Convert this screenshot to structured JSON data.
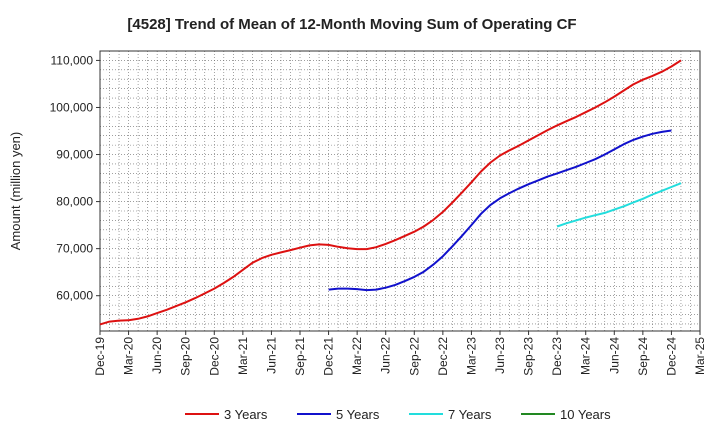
{
  "chart_data": {
    "type": "line",
    "title": "[4528]  Trend of Mean of 12-Month Moving Sum of Operating CF",
    "xlabel": "",
    "ylabel": "Amount (million yen)",
    "ylim": [
      52500,
      112000
    ],
    "yticks": [
      60000,
      70000,
      80000,
      90000,
      100000,
      110000
    ],
    "ytick_labels": [
      "60,000",
      "70,000",
      "80,000",
      "90,000",
      "100,000",
      "110,000"
    ],
    "xlim_months": [
      0,
      63
    ],
    "x_ticks": [
      {
        "m": 0,
        "label": "Dec-19"
      },
      {
        "m": 3,
        "label": "Mar-20"
      },
      {
        "m": 6,
        "label": "Jun-20"
      },
      {
        "m": 9,
        "label": "Sep-20"
      },
      {
        "m": 12,
        "label": "Dec-20"
      },
      {
        "m": 15,
        "label": "Mar-21"
      },
      {
        "m": 18,
        "label": "Jun-21"
      },
      {
        "m": 21,
        "label": "Sep-21"
      },
      {
        "m": 24,
        "label": "Dec-21"
      },
      {
        "m": 27,
        "label": "Mar-22"
      },
      {
        "m": 30,
        "label": "Jun-22"
      },
      {
        "m": 33,
        "label": "Sep-22"
      },
      {
        "m": 36,
        "label": "Dec-22"
      },
      {
        "m": 39,
        "label": "Mar-23"
      },
      {
        "m": 42,
        "label": "Jun-23"
      },
      {
        "m": 45,
        "label": "Sep-23"
      },
      {
        "m": 48,
        "label": "Dec-23"
      },
      {
        "m": 51,
        "label": "Mar-24"
      },
      {
        "m": 54,
        "label": "Jun-24"
      },
      {
        "m": 57,
        "label": "Sep-24"
      },
      {
        "m": 60,
        "label": "Dec-24"
      },
      {
        "m": 63,
        "label": "Mar-25"
      }
    ],
    "grid": true,
    "legend_position": "bottom",
    "series": [
      {
        "name": "3 Years",
        "color": "#dd1111",
        "start_month": 0,
        "values": [
          53900,
          54500,
          54700,
          54800,
          55100,
          55600,
          56300,
          57000,
          57800,
          58600,
          59500,
          60500,
          61500,
          62700,
          64000,
          65500,
          67000,
          68000,
          68700,
          69200,
          69700,
          70200,
          70700,
          70900,
          70800,
          70400,
          70100,
          69900,
          69900,
          70300,
          71000,
          71800,
          72700,
          73600,
          74700,
          76100,
          77800,
          79800,
          81900,
          84100,
          86400,
          88300,
          89800,
          90900,
          91900,
          93000,
          94100,
          95200,
          96200,
          97100,
          98000,
          99000,
          100000,
          101100,
          102300,
          103600,
          104900,
          105900,
          106700,
          107600,
          108700,
          110000
        ]
      },
      {
        "name": "5 Years",
        "color": "#1111cc",
        "start_month": 24,
        "values": [
          61300,
          61500,
          61500,
          61400,
          61200,
          61300,
          61700,
          62300,
          63100,
          64000,
          65100,
          66600,
          68400,
          70500,
          72700,
          75000,
          77400,
          79300,
          80700,
          81800,
          82800,
          83700,
          84500,
          85300,
          86000,
          86700,
          87400,
          88200,
          89000,
          90000,
          91100,
          92200,
          93100,
          93800,
          94400,
          94800,
          95100
        ]
      },
      {
        "name": "7 Years",
        "color": "#22dddd",
        "start_month": 48,
        "values": [
          74700,
          75400,
          76000,
          76600,
          77100,
          77600,
          78300,
          79000,
          79800,
          80600,
          81500,
          82300,
          83100,
          83900
        ]
      },
      {
        "name": "10 Years",
        "color": "#228822",
        "start_month": 0,
        "values": []
      }
    ]
  }
}
